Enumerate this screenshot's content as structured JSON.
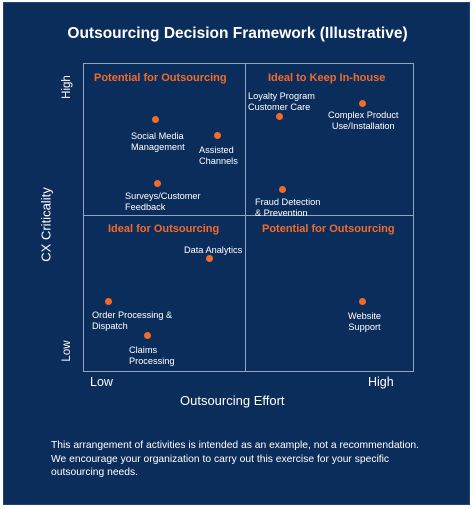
{
  "title": "Outsourcing Decision Framework (Illustrative)",
  "axes": {
    "y_title": "CX Criticality",
    "y_high": "High",
    "y_low": "Low",
    "x_title": "Outsourcing Effort",
    "x_low": "Low",
    "x_high": "High"
  },
  "quadrants": {
    "top_left": "Potential for Outsourcing",
    "top_right": "Ideal to Keep In-house",
    "bottom_left": "Ideal for Outsourcing",
    "bottom_right": "Potential for Outsourcing"
  },
  "items": {
    "social_media": [
      "Social Media",
      "Management"
    ],
    "assisted_channels": [
      "Assisted",
      "Channels"
    ],
    "surveys": [
      "Surveys/Customer",
      "Feedback"
    ],
    "loyalty": [
      "Loyalty Program",
      "Customer Care"
    ],
    "complex_product": [
      "Complex Product",
      "Use/Installation"
    ],
    "fraud": [
      "Fraud Detection",
      "& Prevention"
    ],
    "data_analytics": [
      "Data Analytics"
    ],
    "order_processing": [
      "Order Processing &",
      "Dispatch"
    ],
    "claims": [
      "Claims",
      "Processing"
    ],
    "website": [
      "Website",
      "Support"
    ]
  },
  "footnote": "This arrangement of activities is intended as an example, not a recommendation. We encourage your organization to carry out this exercise for your specific outsourcing needs.",
  "colors": {
    "background": "#0b2d5b",
    "accent": "#f26b2b",
    "grid": "#8fa6c3"
  }
}
